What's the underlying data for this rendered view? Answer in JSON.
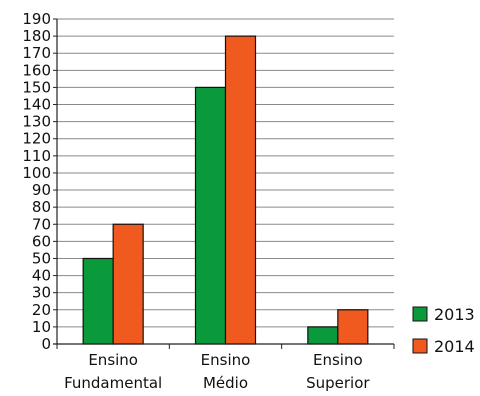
{
  "chart_data": {
    "type": "bar",
    "title": "",
    "xlabel": "",
    "ylabel": "",
    "categories": [
      [
        "Ensino",
        "Fundamental"
      ],
      [
        "Ensino",
        "Médio"
      ],
      [
        "Ensino",
        "Superior"
      ]
    ],
    "series": [
      {
        "name": "2013",
        "color": "#0a9a3c",
        "values": [
          50,
          150,
          10
        ]
      },
      {
        "name": "2014",
        "color": "#f05a1e",
        "values": [
          70,
          180,
          20
        ]
      }
    ],
    "ylim": [
      0,
      190
    ],
    "ytick_step": 10,
    "grid": true,
    "legend_position": "bottom-right"
  }
}
